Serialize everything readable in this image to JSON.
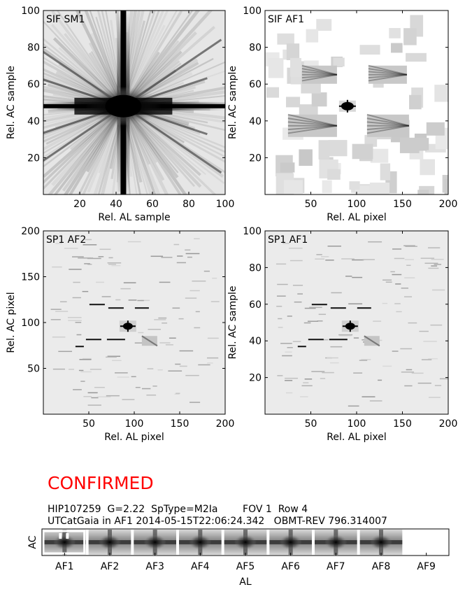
{
  "panels": [
    {
      "id": "sif-sm1",
      "label": "SIF SM1",
      "kind": "dense",
      "xlabel": "Rel. AL sample",
      "ylabel": "Rel. AC sample",
      "xlim": [
        0,
        100
      ],
      "ylim": [
        0,
        100
      ],
      "xticks": [
        20,
        40,
        60,
        80,
        100
      ],
      "yticks": [
        20,
        40,
        60,
        80,
        100
      ],
      "center": [
        44,
        48
      ]
    },
    {
      "id": "sif-af1",
      "label": "SIF AF1",
      "kind": "patches",
      "xlabel": "Rel. AL pixel",
      "ylabel": "Rel. AC sample",
      "xlim": [
        0,
        200
      ],
      "ylim": [
        0,
        100
      ],
      "xticks": [
        50,
        100,
        150,
        200
      ],
      "yticks": [
        20,
        40,
        60,
        80,
        100
      ],
      "center": [
        90,
        48
      ]
    },
    {
      "id": "sp1-af2",
      "label": "SP1 AF2",
      "kind": "sparse",
      "xlabel": "Rel. AL pixel",
      "ylabel": "Rel. AC pixel",
      "xlim": [
        0,
        200
      ],
      "ylim": [
        0,
        200
      ],
      "xticks": [
        50,
        100,
        150,
        200
      ],
      "yticks": [
        50,
        100,
        150,
        200
      ],
      "center": [
        93,
        96
      ]
    },
    {
      "id": "sp1-af1",
      "label": "SP1 AF1",
      "kind": "sparse",
      "xlabel": "Rel. AL pixel",
      "ylabel": "Rel. AC sample",
      "xlim": [
        0,
        200
      ],
      "ylim": [
        0,
        100
      ],
      "xticks": [
        50,
        100,
        150,
        200
      ],
      "yticks": [
        20,
        40,
        60,
        80,
        100
      ],
      "center": [
        93,
        48
      ]
    }
  ],
  "status": {
    "text": "CONFIRMED",
    "color": "#ff0000"
  },
  "info": {
    "line1": "HIP107259  G=2.22  SpType=M2Ia        FOV 1  Row 4",
    "line2": "UTCatGaia in AF1 2014-05-15T22:06:24.342   OBMT-REV 796.314007"
  },
  "strip": {
    "ylabel": "AC",
    "xlabel": "AL",
    "cells": [
      {
        "label": "AF1",
        "image": true,
        "highlight": true
      },
      {
        "label": "AF2",
        "image": true
      },
      {
        "label": "AF3",
        "image": true
      },
      {
        "label": "AF4",
        "image": true
      },
      {
        "label": "AF5",
        "image": true
      },
      {
        "label": "AF6",
        "image": true
      },
      {
        "label": "AF7",
        "image": true
      },
      {
        "label": "AF8",
        "image": true
      },
      {
        "label": "AF9",
        "image": false
      }
    ]
  },
  "chart_data": [
    {
      "type": "heatmap",
      "title": "SIF SM1",
      "xlabel": "Rel. AL sample",
      "ylabel": "Rel. AC sample",
      "xlim": [
        0,
        100
      ],
      "ylim": [
        0,
        100
      ],
      "peak": {
        "x": 44,
        "y": 48
      }
    },
    {
      "type": "heatmap",
      "title": "SIF AF1",
      "xlabel": "Rel. AL pixel",
      "ylabel": "Rel. AC sample",
      "xlim": [
        0,
        200
      ],
      "ylim": [
        0,
        100
      ],
      "peak": {
        "x": 90,
        "y": 48
      }
    },
    {
      "type": "heatmap",
      "title": "SP1 AF2",
      "xlabel": "Rel. AL pixel",
      "ylabel": "Rel. AC pixel",
      "xlim": [
        0,
        200
      ],
      "ylim": [
        0,
        200
      ],
      "peak": {
        "x": 93,
        "y": 96
      }
    },
    {
      "type": "heatmap",
      "title": "SP1 AF1",
      "xlabel": "Rel. AL pixel",
      "ylabel": "Rel. AC sample",
      "xlim": [
        0,
        200
      ],
      "ylim": [
        0,
        100
      ],
      "peak": {
        "x": 93,
        "y": 48
      }
    }
  ]
}
